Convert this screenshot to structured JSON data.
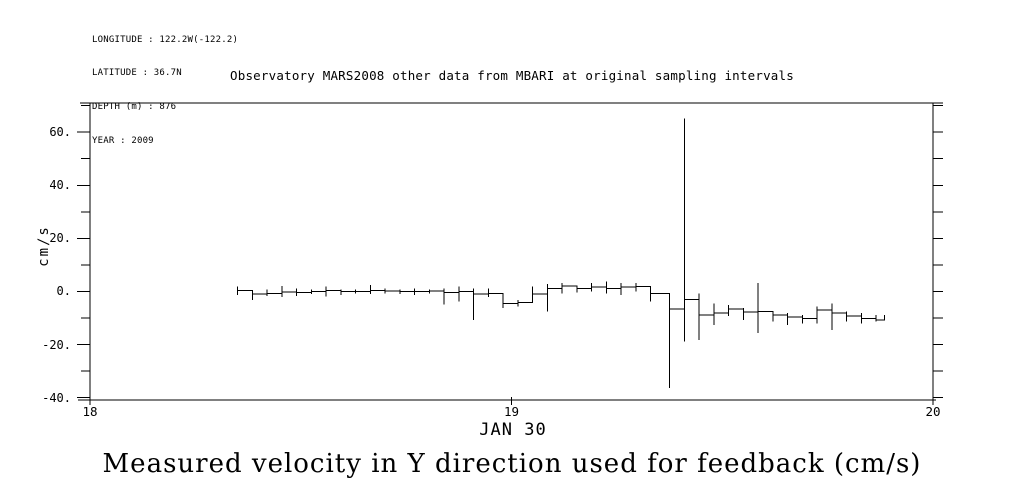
{
  "metadata": {
    "lines": [
      "LONGITUDE : 122.2W(-122.2)",
      "LATITUDE : 36.7N",
      "DEPTH (m) : 876",
      "YEAR : 2009"
    ]
  },
  "caption": "Measured velocity in Y direction used for feedback (cm/s)",
  "colors": {
    "foreground": "#000000",
    "background": "#ffffff"
  },
  "chart_data": {
    "type": "line",
    "title": "Observatory MARS2008 other data from MBARI at original sampling intervals",
    "xlabel": "JAN 30",
    "ylabel": "cm/s",
    "xlim": [
      18,
      20
    ],
    "ylim": [
      -40.9,
      71.0
    ],
    "grid": false,
    "legend": "none",
    "line_style": "step-after with vertical min-max range bars at each sample",
    "x_ticks": [
      {
        "v": 18,
        "label": "18"
      },
      {
        "v": 19,
        "label": "19"
      },
      {
        "v": 20,
        "label": "20"
      }
    ],
    "y_ticks_major": [
      {
        "v": 60,
        "label": "60."
      },
      {
        "v": 40,
        "label": "40."
      },
      {
        "v": 20,
        "label": "20."
      },
      {
        "v": 0,
        "label": "0."
      },
      {
        "v": -20,
        "label": "-20."
      },
      {
        "v": -40,
        "label": "-40."
      }
    ],
    "y_ticks_minor": [
      70,
      50,
      30,
      10,
      -10,
      -30
    ],
    "sample_format": [
      "day_of_jan",
      "mean_cm_s",
      "min_cm_s",
      "max_cm_s"
    ],
    "series": [
      {
        "name": "measured_velocity_y_cm_s",
        "samples": [
          [
            18.35,
            0.3,
            -1.3,
            1.8
          ],
          [
            18.385,
            -0.9,
            -3.2,
            0.3
          ],
          [
            18.42,
            -0.7,
            -1.7,
            0.8
          ],
          [
            18.455,
            -0.2,
            -2.0,
            2.0
          ],
          [
            18.49,
            -0.4,
            -1.7,
            1.2
          ],
          [
            18.525,
            0.0,
            -0.9,
            0.8
          ],
          [
            18.56,
            0.3,
            -1.9,
            1.8
          ],
          [
            18.595,
            0.0,
            -1.3,
            0.8
          ],
          [
            18.63,
            0.0,
            -0.7,
            0.8
          ],
          [
            18.665,
            0.3,
            -0.9,
            2.4
          ],
          [
            18.7,
            0.2,
            -0.7,
            1.2
          ],
          [
            18.735,
            0.0,
            -0.9,
            0.8
          ],
          [
            18.77,
            -0.1,
            -1.3,
            1.2
          ],
          [
            18.805,
            0.2,
            -0.7,
            0.8
          ],
          [
            18.84,
            -0.4,
            -5.0,
            1.2
          ],
          [
            18.875,
            0.0,
            -3.8,
            1.8
          ],
          [
            18.91,
            -0.9,
            -10.7,
            1.2
          ],
          [
            18.945,
            -0.7,
            -2.0,
            1.2
          ],
          [
            18.98,
            -4.5,
            -6.3,
            -3.2
          ],
          [
            19.015,
            -4.2,
            -5.7,
            -3.2
          ],
          [
            19.05,
            -0.9,
            -3.2,
            1.8
          ],
          [
            19.085,
            1.2,
            -7.6,
            2.8
          ],
          [
            19.12,
            2.1,
            -0.7,
            3.1
          ],
          [
            19.155,
            1.2,
            -0.4,
            1.8
          ],
          [
            19.19,
            1.6,
            -0.1,
            3.1
          ],
          [
            19.225,
            1.2,
            -0.7,
            3.7
          ],
          [
            19.26,
            1.6,
            -1.3,
            3.1
          ],
          [
            19.295,
            1.8,
            -0.1,
            3.1
          ],
          [
            19.33,
            -0.7,
            -3.8,
            1.8
          ],
          [
            19.375,
            -6.6,
            -36.4,
            -5.5
          ],
          [
            19.41,
            -3.0,
            -18.9,
            65.2
          ],
          [
            19.445,
            -8.8,
            -18.3,
            -0.7
          ],
          [
            19.48,
            -8.2,
            -12.6,
            -4.5
          ],
          [
            19.515,
            -6.7,
            -9.2,
            -5.2
          ],
          [
            19.55,
            -7.8,
            -10.7,
            -6.3
          ],
          [
            19.585,
            -7.6,
            -15.7,
            3.1
          ],
          [
            19.62,
            -8.8,
            -11.4,
            -7.6
          ],
          [
            19.655,
            -9.7,
            -12.6,
            -8.2
          ],
          [
            19.69,
            -10.1,
            -12.0,
            -8.8
          ],
          [
            19.725,
            -7.0,
            -12.0,
            -5.7
          ],
          [
            19.76,
            -8.2,
            -14.5,
            -4.5
          ],
          [
            19.795,
            -9.2,
            -11.4,
            -7.6
          ],
          [
            19.83,
            -10.1,
            -12.0,
            -8.2
          ],
          [
            19.865,
            -10.7,
            -11.4,
            -8.8
          ],
          [
            19.885,
            -8.8,
            -8.8,
            -8.8
          ]
        ]
      }
    ]
  }
}
